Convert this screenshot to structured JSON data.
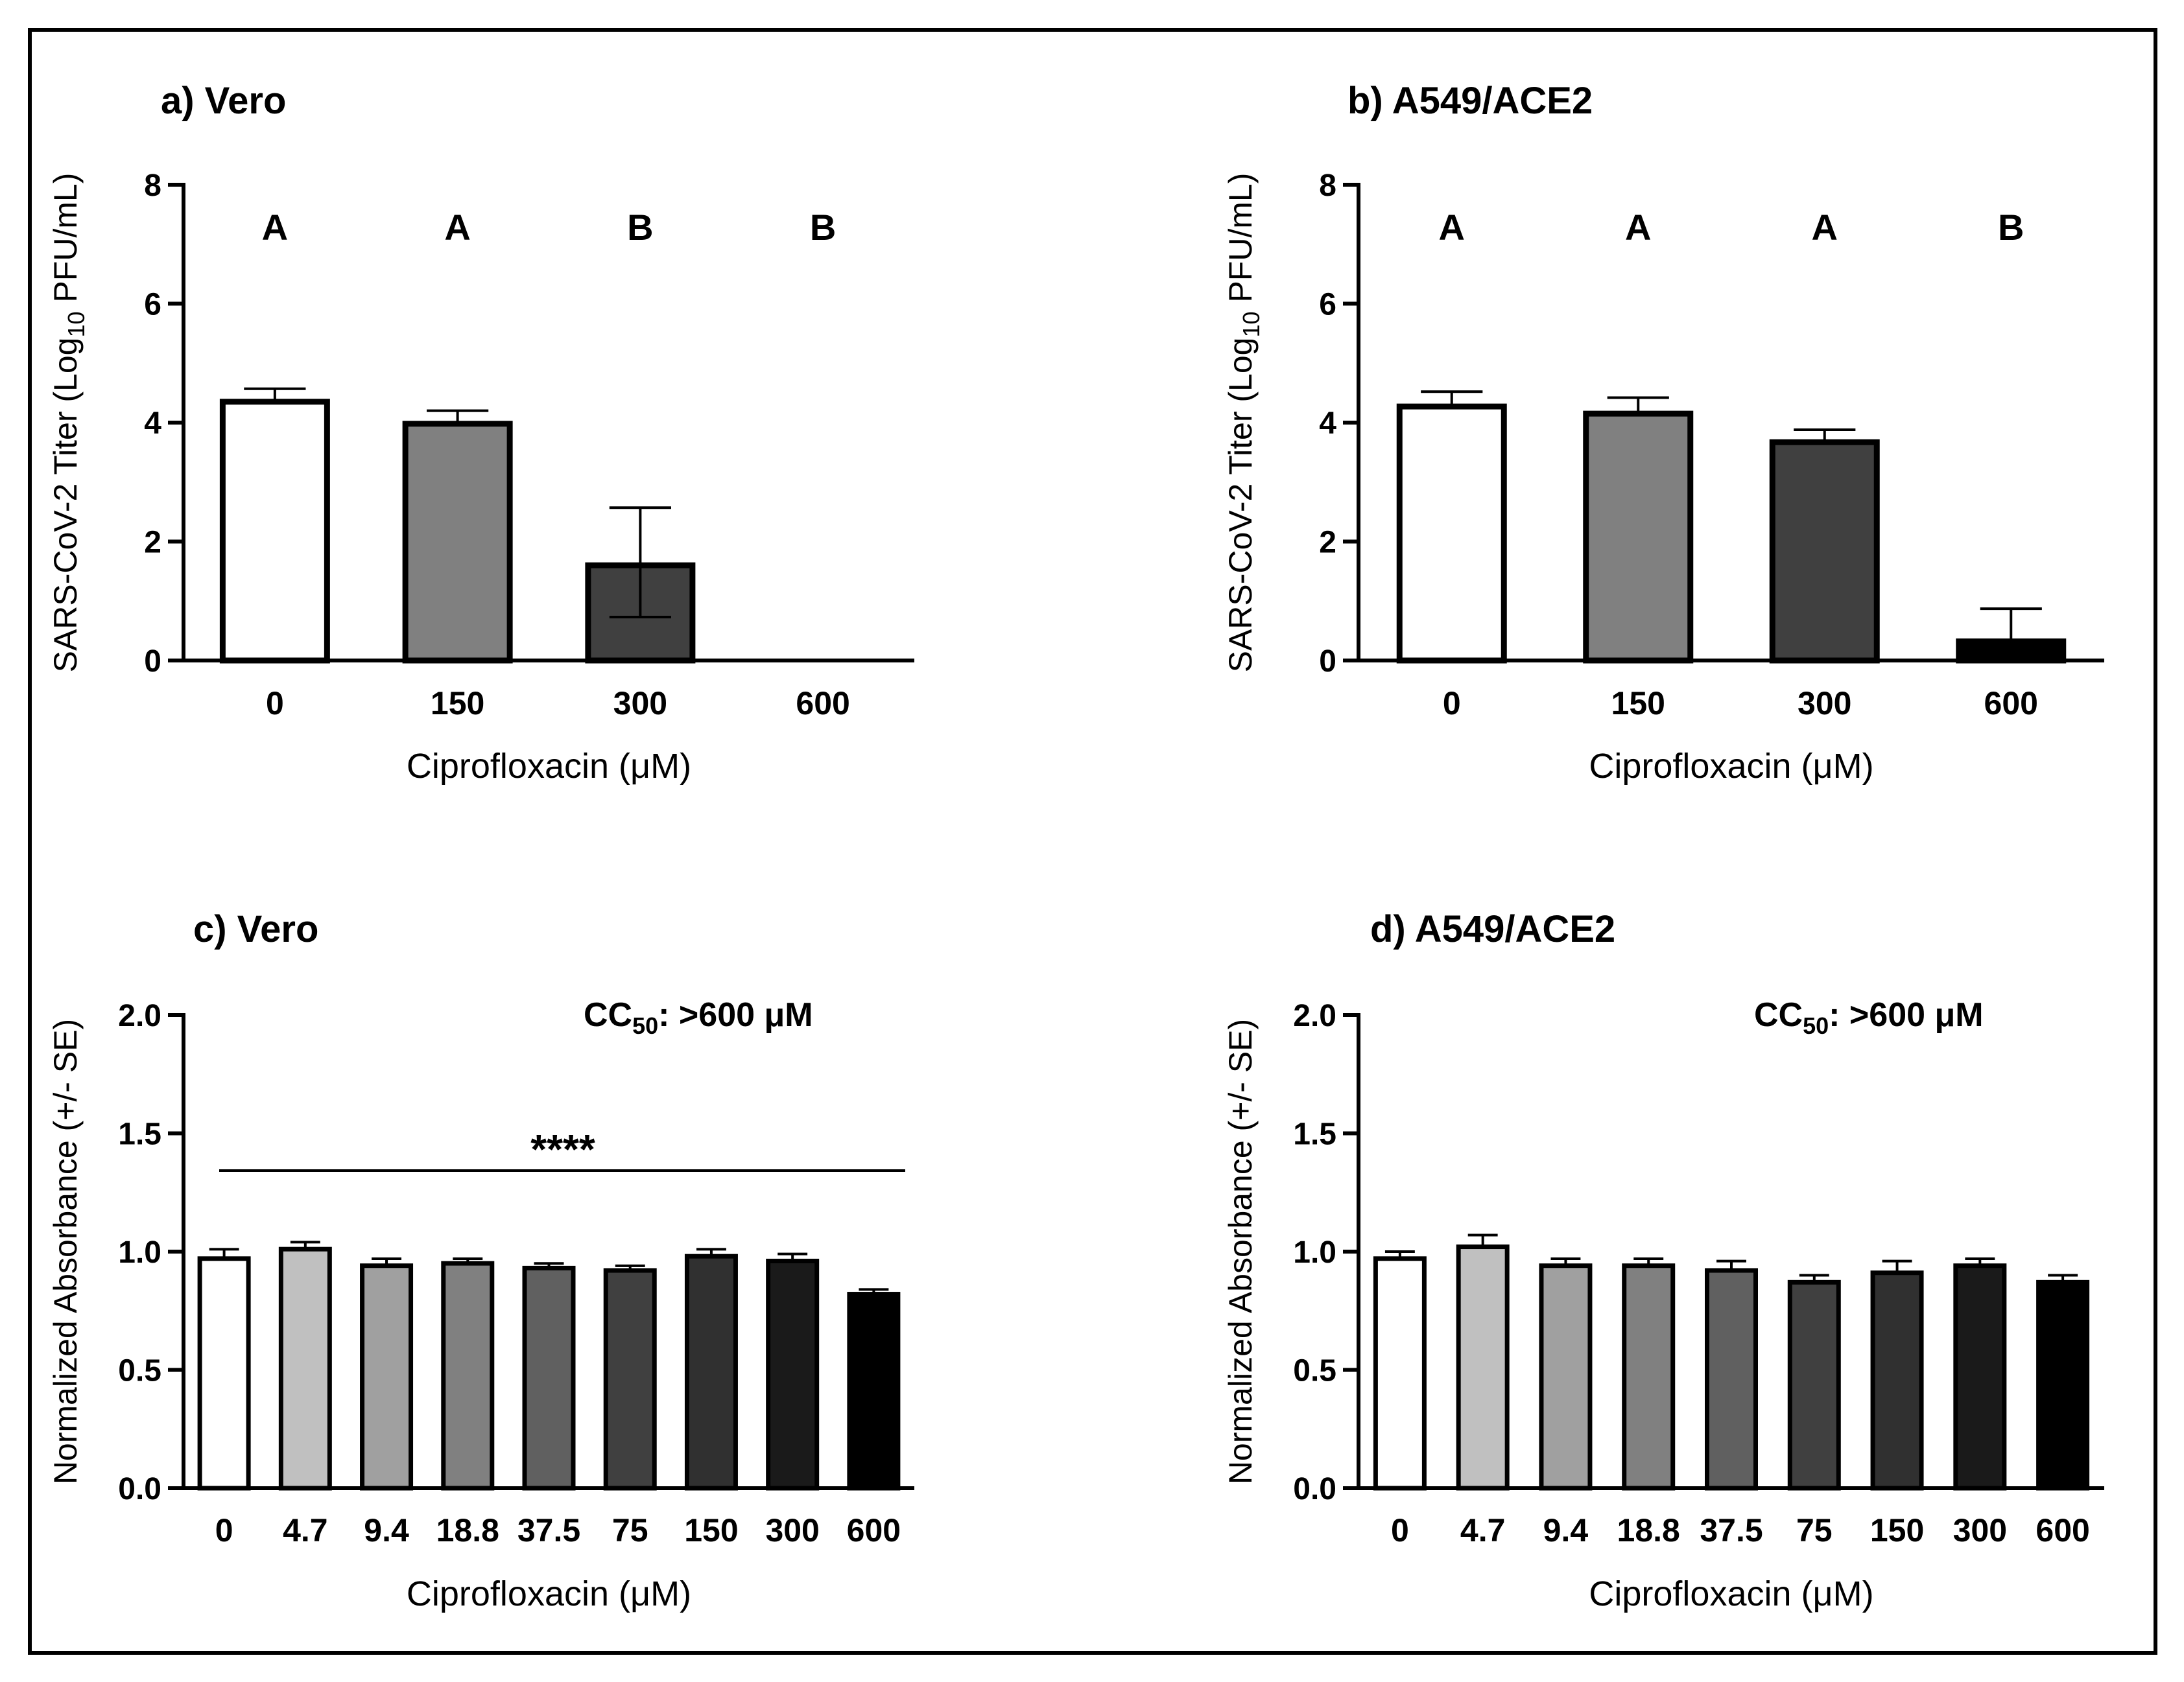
{
  "chart_data": [
    {
      "type": "bar",
      "panel_title": "a) Vero",
      "xlabel": "Ciprofloxacin (μM)",
      "ylabel": {
        "pre": "SARS-CoV-2 Titer (Log",
        "sub": "10",
        "post": " PFU/mL)"
      },
      "ylim": [
        0,
        8
      ],
      "yticks": [
        "0",
        "2",
        "4",
        "6",
        "8"
      ],
      "categories": [
        "0",
        "150",
        "300",
        "600"
      ],
      "values": [
        4.4,
        4.03,
        1.65,
        0
      ],
      "errors": [
        0.17,
        0.17,
        0.92,
        0
      ],
      "colors": [
        "#ffffff",
        "#808080",
        "#404040",
        "#000000"
      ],
      "letters": [
        "A",
        "A",
        "B",
        "B"
      ]
    },
    {
      "type": "bar",
      "panel_title": "b) A549/ACE2",
      "xlabel": "Ciprofloxacin (μM)",
      "ylabel": {
        "pre": "SARS-CoV-2 Titer (Log",
        "sub": "10",
        "post": " PFU/mL)"
      },
      "ylim": [
        0,
        8
      ],
      "yticks": [
        "0",
        "2",
        "4",
        "6",
        "8"
      ],
      "categories": [
        "0",
        "150",
        "300",
        "600"
      ],
      "values": [
        4.32,
        4.2,
        3.72,
        0.37
      ],
      "errors": [
        0.2,
        0.22,
        0.16,
        0.5
      ],
      "colors": [
        "#ffffff",
        "#808080",
        "#404040",
        "#000000"
      ],
      "letters": [
        "A",
        "A",
        "A",
        "B"
      ]
    },
    {
      "type": "bar",
      "panel_title": "c) Vero",
      "xlabel": "Ciprofloxacin (μM)",
      "ylabel": "Normalized Absorbance (+/- SE)",
      "ylim": [
        0,
        2.0
      ],
      "yticks": [
        "0.0",
        "0.5",
        "1.0",
        "1.5",
        "2.0"
      ],
      "categories": [
        "0",
        "4.7",
        "9.4",
        "18.8",
        "37.5",
        "75",
        "150",
        "300",
        "600"
      ],
      "values": [
        0.98,
        1.02,
        0.95,
        0.96,
        0.94,
        0.93,
        0.99,
        0.97,
        0.83
      ],
      "errors": [
        0.03,
        0.02,
        0.02,
        0.01,
        0.01,
        0.01,
        0.02,
        0.02,
        0.01
      ],
      "colors": [
        "#ffffff",
        "#c0c0c0",
        "#a0a0a0",
        "#808080",
        "#606060",
        "#404040",
        "#303030",
        "#1a1a1a",
        "#000000"
      ],
      "annotation": {
        "pre": "CC",
        "sub": "50",
        "post": ": >600 μM"
      },
      "significance": "****"
    },
    {
      "type": "bar",
      "panel_title": "d) A549/ACE2",
      "xlabel": "Ciprofloxacin (μM)",
      "ylabel": "Normalized Absorbance (+/- SE)",
      "ylim": [
        0,
        2.0
      ],
      "yticks": [
        "0.0",
        "0.5",
        "1.0",
        "1.5",
        "2.0"
      ],
      "categories": [
        "0",
        "4.7",
        "9.4",
        "18.8",
        "37.5",
        "75",
        "150",
        "300",
        "600"
      ],
      "values": [
        0.98,
        1.03,
        0.95,
        0.95,
        0.93,
        0.88,
        0.92,
        0.95,
        0.88
      ],
      "errors": [
        0.02,
        0.04,
        0.02,
        0.02,
        0.03,
        0.02,
        0.04,
        0.02,
        0.02
      ],
      "colors": [
        "#ffffff",
        "#c0c0c0",
        "#a0a0a0",
        "#808080",
        "#606060",
        "#404040",
        "#303030",
        "#1a1a1a",
        "#000000"
      ],
      "annotation": {
        "pre": "CC",
        "sub": "50",
        "post": ": >600 μM"
      }
    }
  ]
}
